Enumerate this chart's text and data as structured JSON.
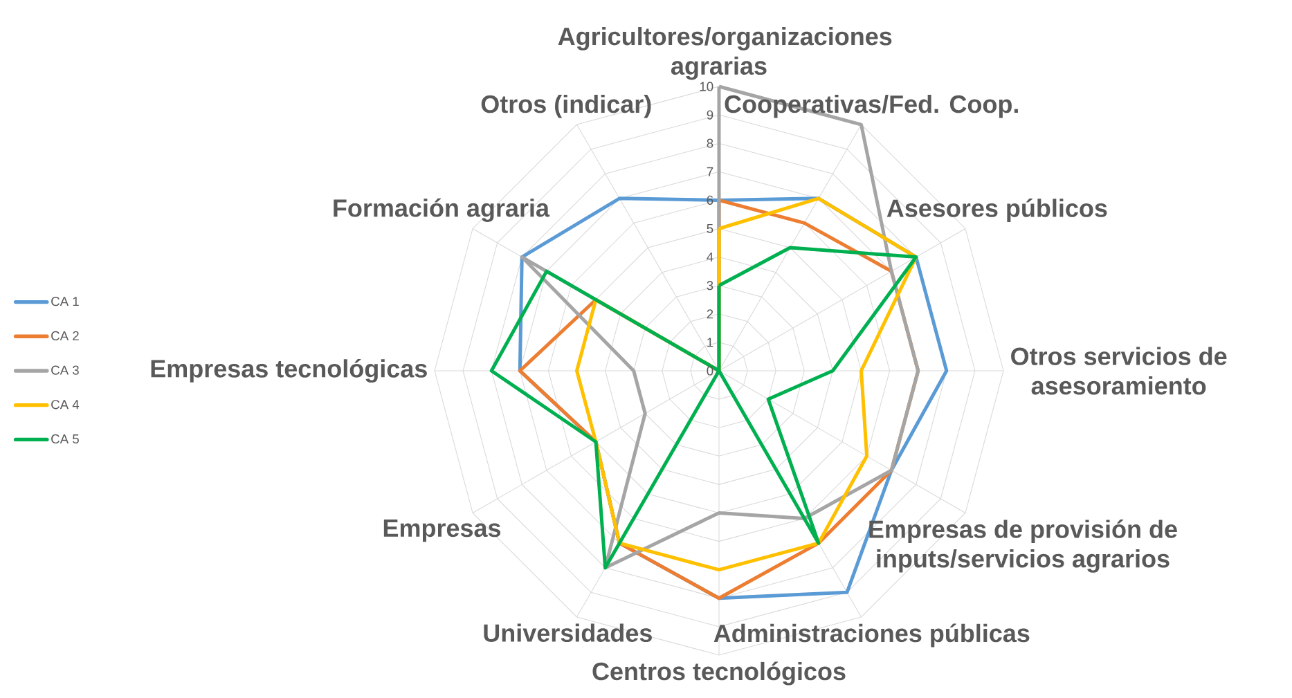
{
  "chart_data": {
    "type": "radar",
    "categories": [
      "Agricultores/organizaciones agrarias",
      "Cooperativas/Fed. Coop.",
      "Asesores públicos",
      "Otros servicios de asesoramiento",
      "Empresas de provisión de inputs/servicios agrarios",
      "Administraciones públicas",
      "Centros tecnológicos",
      "Universidades",
      "Empresas",
      "Empresas tecnológicas",
      "Formación agraria",
      "Otros (indicar)"
    ],
    "series": [
      {
        "name": "CA 1",
        "color": "#5b9bd5",
        "values": [
          6,
          7,
          8,
          8,
          7,
          9,
          8,
          7,
          5,
          7,
          8,
          7
        ]
      },
      {
        "name": "CA 2",
        "color": "#ed7d31",
        "values": [
          6,
          6,
          7,
          7,
          7,
          7,
          8,
          7,
          5,
          7,
          5,
          0
        ]
      },
      {
        "name": "CA 3",
        "color": "#a5a5a5",
        "values": [
          10,
          10,
          7,
          7,
          7,
          6,
          5,
          8,
          3,
          3,
          8,
          0
        ]
      },
      {
        "name": "CA 4",
        "color": "#ffc000",
        "values": [
          5,
          7,
          8,
          5,
          6,
          7,
          7,
          7,
          5,
          5,
          5,
          0
        ]
      },
      {
        "name": "CA 5",
        "color": "#00b050",
        "values": [
          3,
          5,
          8,
          4,
          2,
          7,
          0,
          8,
          5,
          8,
          7,
          0
        ]
      }
    ],
    "ylim": [
      0,
      10
    ],
    "yticks": [
      0,
      1,
      2,
      3,
      4,
      5,
      6,
      7,
      8,
      9,
      10
    ],
    "grid": true,
    "legend": "left",
    "marker": "none",
    "line_style": "solid"
  }
}
